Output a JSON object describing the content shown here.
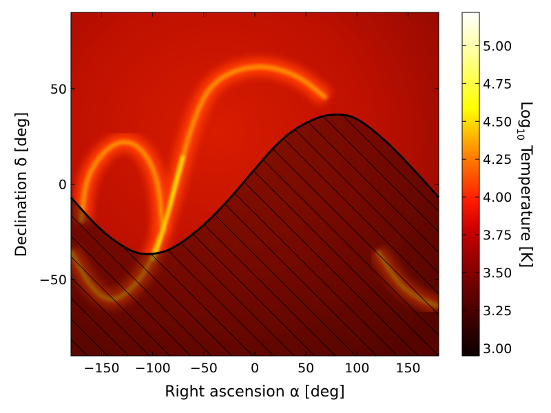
{
  "chart_data": {
    "type": "heatmap",
    "title": "",
    "xlabel": "Right ascension α [deg]",
    "ylabel": "Declination δ [deg]",
    "xlim": [
      -180,
      180
    ],
    "ylim": [
      -90,
      90
    ],
    "x_ticks": [
      -150,
      -100,
      -50,
      0,
      50,
      100,
      150
    ],
    "y_ticks": [
      -50,
      0,
      50
    ],
    "x_tick_labels": [
      "−150",
      "−100",
      "−50",
      "0",
      "50",
      "100",
      "150"
    ],
    "y_tick_labels": [
      "−50",
      "0",
      "50"
    ],
    "colorbar": {
      "label_prefix": "Log",
      "label_sub": "10",
      "label_suffix": " Temperature [K]",
      "colormap": "hot",
      "range": [
        2.95,
        5.22
      ],
      "ticks": [
        3.0,
        3.25,
        3.5,
        3.75,
        4.0,
        4.25,
        4.5,
        4.75,
        5.0
      ],
      "tick_labels": [
        "3.00",
        "3.25",
        "3.50",
        "3.75",
        "4.00",
        "4.25",
        "4.50",
        "4.75",
        "5.00"
      ]
    },
    "masked_region": {
      "description_shown": false,
      "boundary": [
        {
          "ra": -180,
          "dec": -7
        },
        {
          "ra": -150,
          "dec": -25
        },
        {
          "ra": -120,
          "dec": -36
        },
        {
          "ra": -100,
          "dec": -37
        },
        {
          "ra": -80,
          "dec": -34
        },
        {
          "ra": -50,
          "dec": -22
        },
        {
          "ra": -20,
          "dec": -5
        },
        {
          "ra": 0,
          "dec": 8
        },
        {
          "ra": 30,
          "dec": 26
        },
        {
          "ra": 60,
          "dec": 35
        },
        {
          "ra": 80,
          "dec": 37
        },
        {
          "ra": 100,
          "dec": 35
        },
        {
          "ra": 130,
          "dec": 22
        },
        {
          "ra": 160,
          "dec": 5
        },
        {
          "ra": 180,
          "dec": -7
        }
      ]
    },
    "features": [
      {
        "name": "galactic-plane-arc",
        "points": [
          {
            "ra": -180,
            "dec": -35
          },
          {
            "ra": -160,
            "dec": -55
          },
          {
            "ra": -140,
            "dec": -62
          },
          {
            "ra": -120,
            "dec": -55
          },
          {
            "ra": -100,
            "dec": -40
          },
          {
            "ra": -80,
            "dec": -5
          },
          {
            "ra": -60,
            "dec": 35
          },
          {
            "ra": -40,
            "dec": 55
          },
          {
            "ra": 0,
            "dec": 63
          },
          {
            "ra": 40,
            "dec": 58
          },
          {
            "ra": 70,
            "dec": 45
          }
        ]
      },
      {
        "name": "southern-arc",
        "points": [
          {
            "ra": 120,
            "dec": -35
          },
          {
            "ra": 140,
            "dec": -52
          },
          {
            "ra": 160,
            "dec": -60
          },
          {
            "ra": 180,
            "dec": -64
          }
        ]
      },
      {
        "name": "loop",
        "points": [
          {
            "ra": -170,
            "dec": -20
          },
          {
            "ra": -165,
            "dec": 5
          },
          {
            "ra": -140,
            "dec": 22
          },
          {
            "ra": -115,
            "dec": 22
          },
          {
            "ra": -95,
            "dec": 5
          },
          {
            "ra": -90,
            "dec": -25
          }
        ]
      }
    ],
    "grid": false,
    "legend": "none"
  }
}
